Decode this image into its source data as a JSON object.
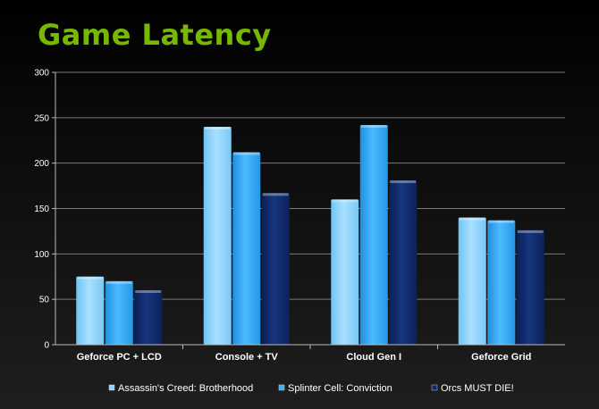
{
  "title": "Game Latency",
  "colors": {
    "series1": "#8fd3ff",
    "series2": "#3daef5",
    "series3": "#0f2a6b",
    "title": "#76b900"
  },
  "chart_data": {
    "type": "bar",
    "title": "Game Latency",
    "categories": [
      "Geforce PC + LCD",
      "Console + TV",
      "Cloud Gen I",
      "Geforce Grid"
    ],
    "series": [
      {
        "name": "Assassin's Creed: Brotherhood",
        "values": [
          75,
          240,
          160,
          140
        ]
      },
      {
        "name": "Splinter Cell: Conviction",
        "values": [
          70,
          212,
          242,
          137
        ]
      },
      {
        "name": "Orcs MUST DIE!",
        "values": [
          60,
          167,
          181,
          126
        ]
      }
    ],
    "xlabel": "",
    "ylabel": "",
    "ylim": [
      0,
      300
    ],
    "yticks": [
      0,
      50,
      100,
      150,
      200,
      250,
      300
    ],
    "grid": true,
    "legend": "bottom"
  }
}
